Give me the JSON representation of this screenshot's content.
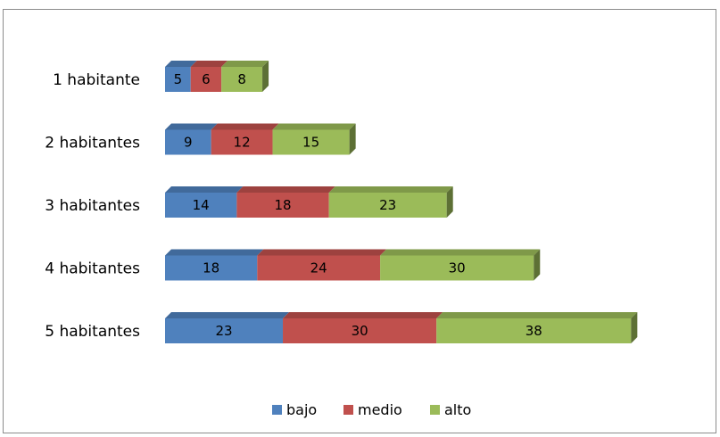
{
  "chart_data": {
    "type": "bar",
    "orientation": "horizontal",
    "stacked": true,
    "style": "3d",
    "categories": [
      "1 habitante",
      "2 habitantes",
      "3 habitantes",
      "4 habitantes",
      "5 habitantes"
    ],
    "series": [
      {
        "name": "bajo",
        "values": [
          5,
          9,
          14,
          18,
          23
        ],
        "color": "#4f81bd"
      },
      {
        "name": "medio",
        "values": [
          6,
          12,
          18,
          24,
          30
        ],
        "color": "#c0504d"
      },
      {
        "name": "alto",
        "values": [
          8,
          15,
          23,
          30,
          38
        ],
        "color": "#9bbb59"
      }
    ],
    "title": "",
    "xlabel": "",
    "ylabel": "",
    "grid": false,
    "legend_position": "bottom",
    "data_labels": true
  }
}
